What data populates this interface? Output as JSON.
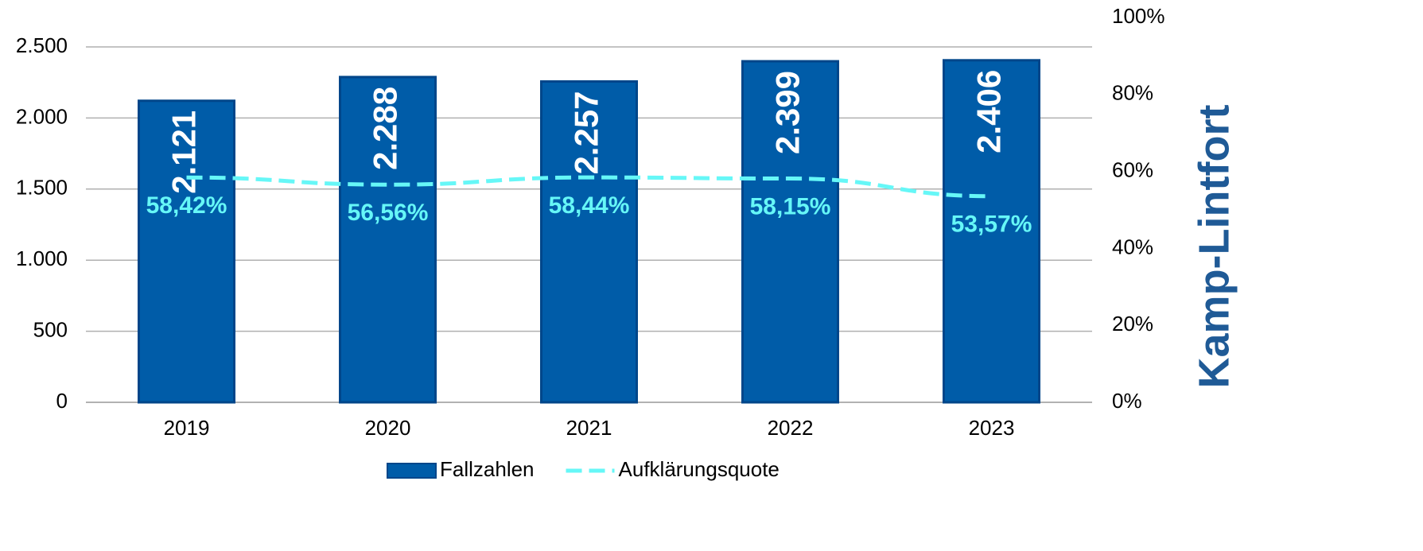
{
  "chart_data": {
    "type": "bar",
    "title": "Kamp-Lintfort",
    "categories": [
      "2019",
      "2020",
      "2021",
      "2022",
      "2023"
    ],
    "series": [
      {
        "name": "Fallzahlen",
        "type": "bar",
        "color": "#005ca8",
        "values": [
          2121,
          2288,
          2257,
          2399,
          2406
        ],
        "value_labels": [
          "2.121",
          "2.288",
          "2.257",
          "2.399",
          "2.406"
        ]
      },
      {
        "name": "Aufklärungsquote",
        "type": "line",
        "axis": "y2",
        "color": "#66f7f7",
        "values": [
          58.42,
          56.56,
          58.44,
          58.15,
          53.57
        ],
        "value_labels": [
          "58,42%",
          "56,56%",
          "58,44%",
          "58,15%",
          "53,57%"
        ]
      }
    ],
    "ylim": [
      0,
      2500
    ],
    "yticks": [
      0,
      500,
      {
        "value": 1000,
        "label": "1.000"
      },
      {
        "value": 1500,
        "label": "1.500"
      },
      {
        "value": 2000,
        "label": "2.000"
      },
      {
        "value": 2500,
        "label": "2.500"
      }
    ],
    "y2lim": [
      0,
      100
    ],
    "y2ticks": [
      {
        "value": 0,
        "label": "0%"
      },
      {
        "value": 20,
        "label": "20%"
      },
      {
        "value": 40,
        "label": "40%"
      },
      {
        "value": 60,
        "label": "60%"
      },
      {
        "value": 80,
        "label": "80%"
      },
      {
        "value": 100,
        "label": "100%"
      }
    ],
    "grid": true,
    "legend": "bottom"
  }
}
